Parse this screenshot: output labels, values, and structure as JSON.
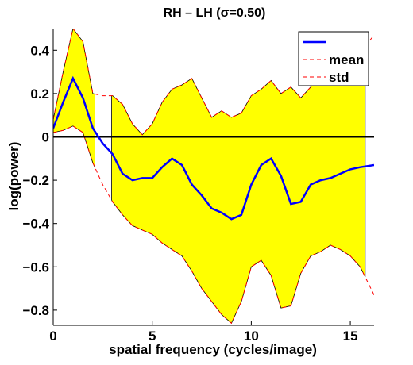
{
  "chart_data": {
    "type": "line",
    "title": "RH – LH (σ=0.50)",
    "xlabel": "spatial frequency (cycles/image)",
    "ylabel": "log(power)",
    "xlim": [
      0,
      16.2
    ],
    "ylim": [
      -0.87,
      0.5
    ],
    "xticks": [
      0,
      5,
      10,
      15
    ],
    "xtick_labels": [
      "0",
      "5",
      "10",
      "15"
    ],
    "yticks": [
      -0.8,
      -0.6,
      -0.4,
      -0.2,
      0,
      0.2,
      0.4
    ],
    "ytick_labels": [
      "−0.8",
      "−0.6",
      "−0.4",
      "−0.2",
      "0",
      "0.2",
      "0.4"
    ],
    "grid": false,
    "legend": {
      "placement": "top-right",
      "entries": [
        {
          "label": "",
          "color": "#0000ff",
          "style": "solid"
        },
        {
          "label": "mean",
          "color": "#ff0000",
          "style": "dashed"
        },
        {
          "label": "std",
          "color": "#ff0000",
          "style": "dashed"
        }
      ]
    },
    "zero_line": {
      "y": 0,
      "color": "#000000"
    },
    "band_color": "#ffff00",
    "band_segments": [
      [
        0,
        2.1
      ],
      [
        2.95,
        15.75
      ]
    ],
    "series": [
      {
        "color": "#0000ff",
        "x": [
          0,
          0.5,
          1.0,
          1.5,
          2.0,
          2.5,
          3.0,
          3.5,
          4.0,
          4.5,
          5.0,
          5.5,
          6.0,
          6.5,
          7.0,
          7.5,
          8.0,
          8.5,
          9.0,
          9.5,
          10.0,
          10.5,
          11.0,
          11.5,
          12.0,
          12.5,
          13.0,
          13.5,
          14.0,
          14.5,
          15.0,
          15.5,
          16.2
        ],
        "y": [
          0.04,
          0.16,
          0.27,
          0.18,
          0.04,
          -0.03,
          -0.08,
          -0.17,
          -0.2,
          -0.19,
          -0.19,
          -0.14,
          -0.1,
          -0.13,
          -0.22,
          -0.27,
          -0.33,
          -0.35,
          -0.38,
          -0.36,
          -0.22,
          -0.13,
          -0.1,
          -0.18,
          -0.31,
          -0.3,
          -0.22,
          -0.2,
          -0.19,
          -0.17,
          -0.15,
          -0.14,
          -0.13
        ]
      },
      {
        "name": "mean",
        "color": "#ff0000",
        "style": "dashed",
        "x": [
          0,
          0.5,
          1.0,
          1.5,
          2.0,
          2.5,
          3.0,
          3.5,
          4.0,
          4.5,
          5.0,
          5.5,
          6.0,
          6.5,
          7.0,
          7.5,
          8.0,
          8.5,
          9.0,
          9.5,
          10.0,
          10.5,
          11.0,
          11.5,
          12.0,
          12.5,
          13.0,
          13.5,
          14.0,
          14.5,
          15.0,
          15.5,
          16.2
        ],
        "y": [
          0.08,
          0.3,
          0.5,
          0.44,
          0.2,
          0.19,
          0.19,
          0.15,
          0.06,
          0.01,
          0.06,
          0.16,
          0.22,
          0.24,
          0.27,
          0.18,
          0.09,
          0.12,
          0.09,
          0.11,
          0.19,
          0.22,
          0.26,
          0.2,
          0.23,
          0.18,
          0.23,
          0.28,
          0.3,
          0.33,
          0.32,
          0.39,
          0.47
        ]
      },
      {
        "name": "std",
        "color": "#ff0000",
        "style": "dashed",
        "x": [
          0,
          0.5,
          1.0,
          1.5,
          2.0,
          2.5,
          3.0,
          3.5,
          4.0,
          4.5,
          5.0,
          5.5,
          6.0,
          6.5,
          7.0,
          7.5,
          8.0,
          8.5,
          9.0,
          9.5,
          10.0,
          10.5,
          11.0,
          11.5,
          12.0,
          12.5,
          13.0,
          13.5,
          14.0,
          14.5,
          15.0,
          15.5,
          16.2
        ],
        "y": [
          0.02,
          0.03,
          0.05,
          0.02,
          -0.12,
          -0.22,
          -0.3,
          -0.36,
          -0.41,
          -0.43,
          -0.45,
          -0.49,
          -0.52,
          -0.55,
          -0.62,
          -0.7,
          -0.76,
          -0.82,
          -0.86,
          -0.76,
          -0.6,
          -0.57,
          -0.64,
          -0.79,
          -0.78,
          -0.63,
          -0.55,
          -0.53,
          -0.5,
          -0.52,
          -0.55,
          -0.6,
          -0.73
        ]
      }
    ]
  }
}
